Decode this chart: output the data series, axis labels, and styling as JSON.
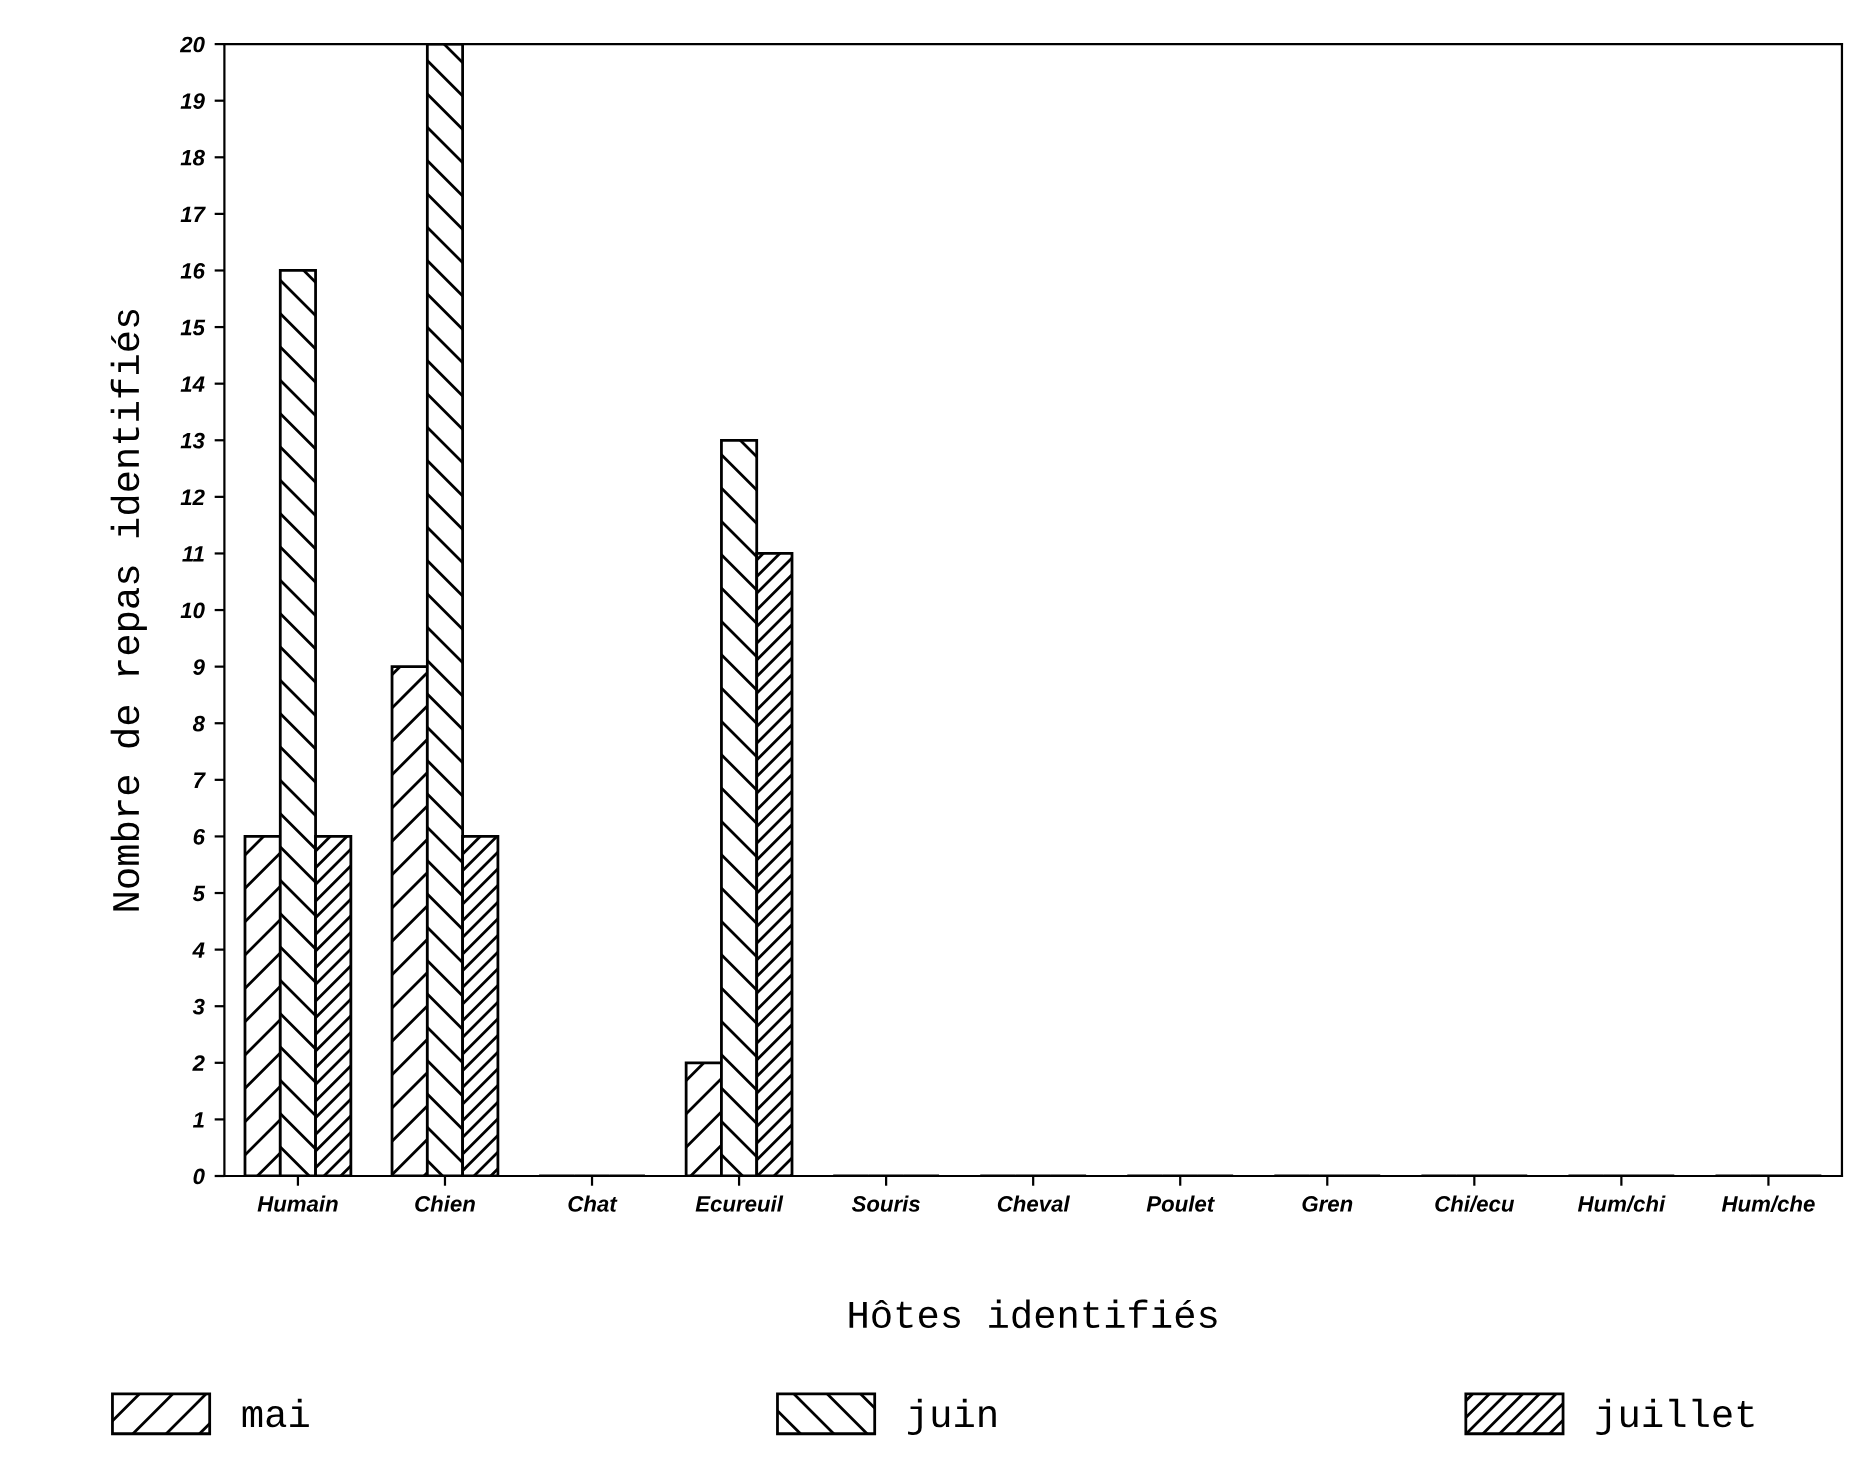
{
  "chart_data": {
    "type": "bar",
    "xlabel": "Hôtes identifiés",
    "ylabel": "Nombre de repas identifiés",
    "categories": [
      "Humain",
      "Chien",
      "Chat",
      "Ecureuil",
      "Souris",
      "Cheval",
      "Poulet",
      "Gren",
      "Chi/ecu",
      "Hum/chi",
      "Hum/che"
    ],
    "series": [
      {
        "name": "mai",
        "color": "#000000",
        "values": [
          6,
          9,
          0,
          2,
          0,
          0,
          0,
          0,
          0,
          0,
          0
        ]
      },
      {
        "name": "juin",
        "color": "#000000",
        "values": [
          16,
          20,
          0,
          13,
          0,
          0,
          0,
          0,
          0,
          0,
          0
        ]
      },
      {
        "name": "juillet",
        "color": "#000000",
        "values": [
          6,
          6,
          0,
          11,
          0,
          0,
          0,
          0,
          0,
          0,
          0
        ]
      }
    ],
    "ylim": [
      0,
      20
    ],
    "yticks": [
      0,
      1,
      2,
      3,
      4,
      5,
      6,
      7,
      8,
      9,
      10,
      11,
      12,
      13,
      14,
      15,
      16,
      17,
      18,
      19,
      20
    ],
    "grid": false,
    "legend": "bottom"
  }
}
